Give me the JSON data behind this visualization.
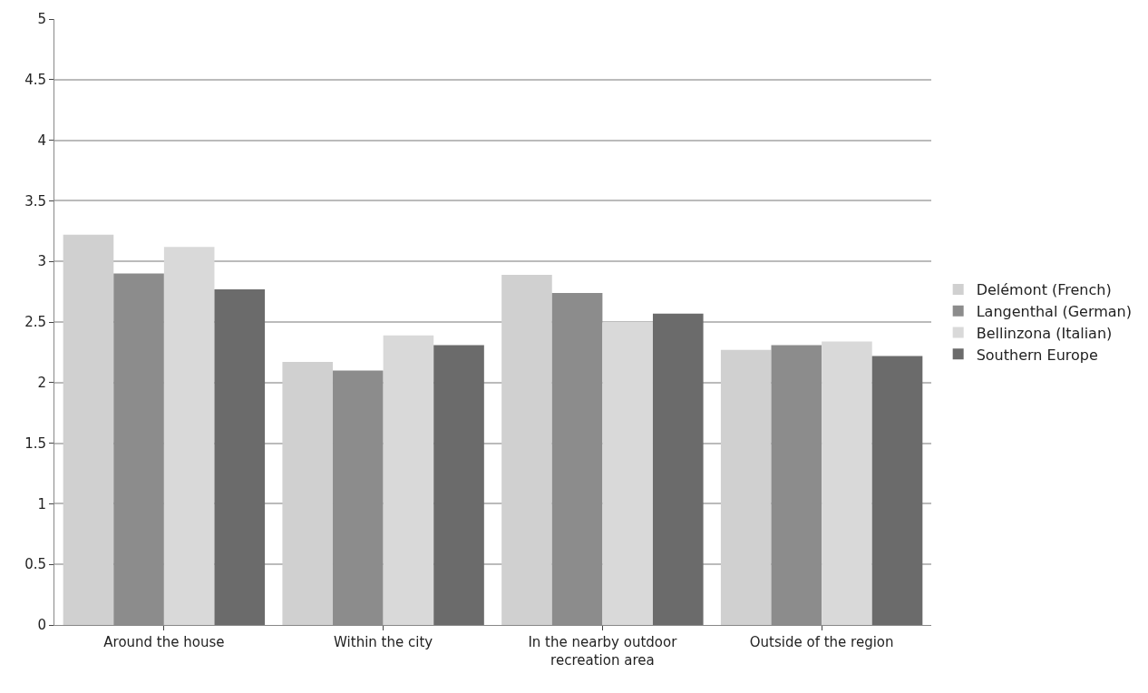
{
  "chart_data": {
    "type": "bar",
    "categories": [
      "Around the house",
      "Within the city",
      "In the nearby outdoor recreation area",
      "Outside of the region"
    ],
    "series": [
      {
        "name": "Delémont (French)",
        "color": "#d0d0d0",
        "values": [
          3.22,
          2.17,
          2.89,
          2.27
        ]
      },
      {
        "name": "Langenthal (German)",
        "color": "#8c8c8c",
        "values": [
          2.9,
          2.1,
          2.74,
          2.31
        ]
      },
      {
        "name": "Bellinzona (Italian)",
        "color": "#d9d9d9",
        "values": [
          3.12,
          2.39,
          2.5,
          2.34
        ]
      },
      {
        "name": "Southern Europe",
        "color": "#6b6b6b",
        "values": [
          2.77,
          2.31,
          2.57,
          2.22
        ]
      }
    ],
    "ylim": [
      0,
      5
    ],
    "yticks": [
      0,
      0.5,
      1,
      1.5,
      2,
      2.5,
      3,
      3.5,
      4,
      4.5,
      5
    ],
    "grid": "y",
    "legend": "right"
  }
}
